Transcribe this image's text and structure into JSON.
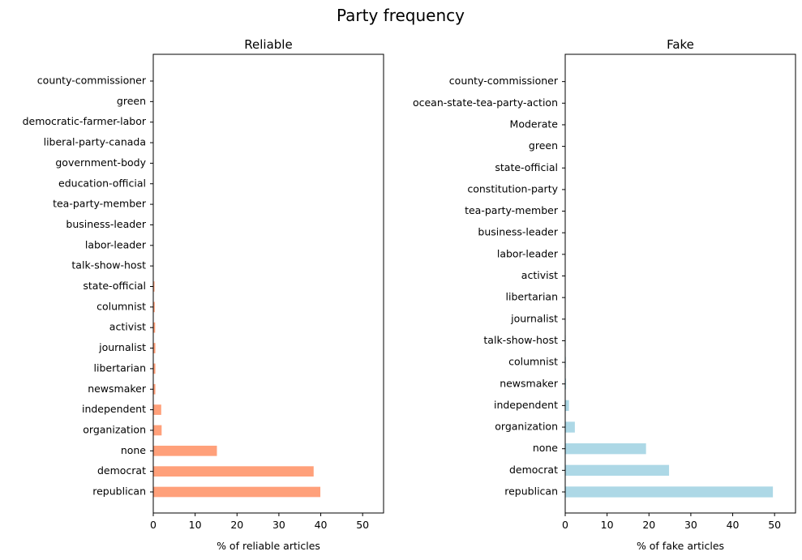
{
  "title": "Party frequency",
  "chart_data": [
    {
      "type": "bar",
      "orientation": "horizontal",
      "title": "Reliable",
      "xlabel": "% of reliable articles",
      "ylabel": "",
      "xlim": [
        0,
        55
      ],
      "xticks": [
        0,
        10,
        20,
        30,
        40,
        50
      ],
      "color": "#FFA07A",
      "grid": false,
      "categories": [
        "republican",
        "democrat",
        "none",
        "organization",
        "independent",
        "newsmaker",
        "libertarian",
        "journalist",
        "activist",
        "columnist",
        "state-official",
        "talk-show-host",
        "labor-leader",
        "business-leader",
        "tea-party-member",
        "education-official",
        "government-body",
        "liberal-party-canada",
        "democratic-farmer-labor",
        "green",
        "county-commissioner"
      ],
      "values": [
        39.9,
        38.3,
        15.2,
        2.0,
        1.9,
        0.5,
        0.5,
        0.5,
        0.45,
        0.35,
        0.3,
        0.1,
        0.08,
        0.07,
        0.06,
        0.05,
        0.04,
        0.03,
        0.02,
        0.02,
        0.01
      ]
    },
    {
      "type": "bar",
      "orientation": "horizontal",
      "title": "Fake",
      "xlabel": "% of fake articles",
      "ylabel": "",
      "xlim": [
        0,
        55
      ],
      "xticks": [
        0,
        10,
        20,
        30,
        40,
        50
      ],
      "color": "#ADD8E6",
      "grid": false,
      "categories": [
        "republican",
        "democrat",
        "none",
        "organization",
        "independent",
        "newsmaker",
        "columnist",
        "talk-show-host",
        "journalist",
        "libertarian",
        "activist",
        "labor-leader",
        "business-leader",
        "tea-party-member",
        "constitution-party",
        "state-official",
        "green",
        "Moderate",
        "ocean-state-tea-party-action",
        "county-commissioner"
      ],
      "values": [
        49.6,
        24.8,
        19.3,
        2.3,
        0.9,
        0.2,
        0.15,
        0.12,
        0.1,
        0.1,
        0.08,
        0.07,
        0.06,
        0.05,
        0.04,
        0.03,
        0.03,
        0.02,
        0.02,
        0.01
      ]
    }
  ]
}
